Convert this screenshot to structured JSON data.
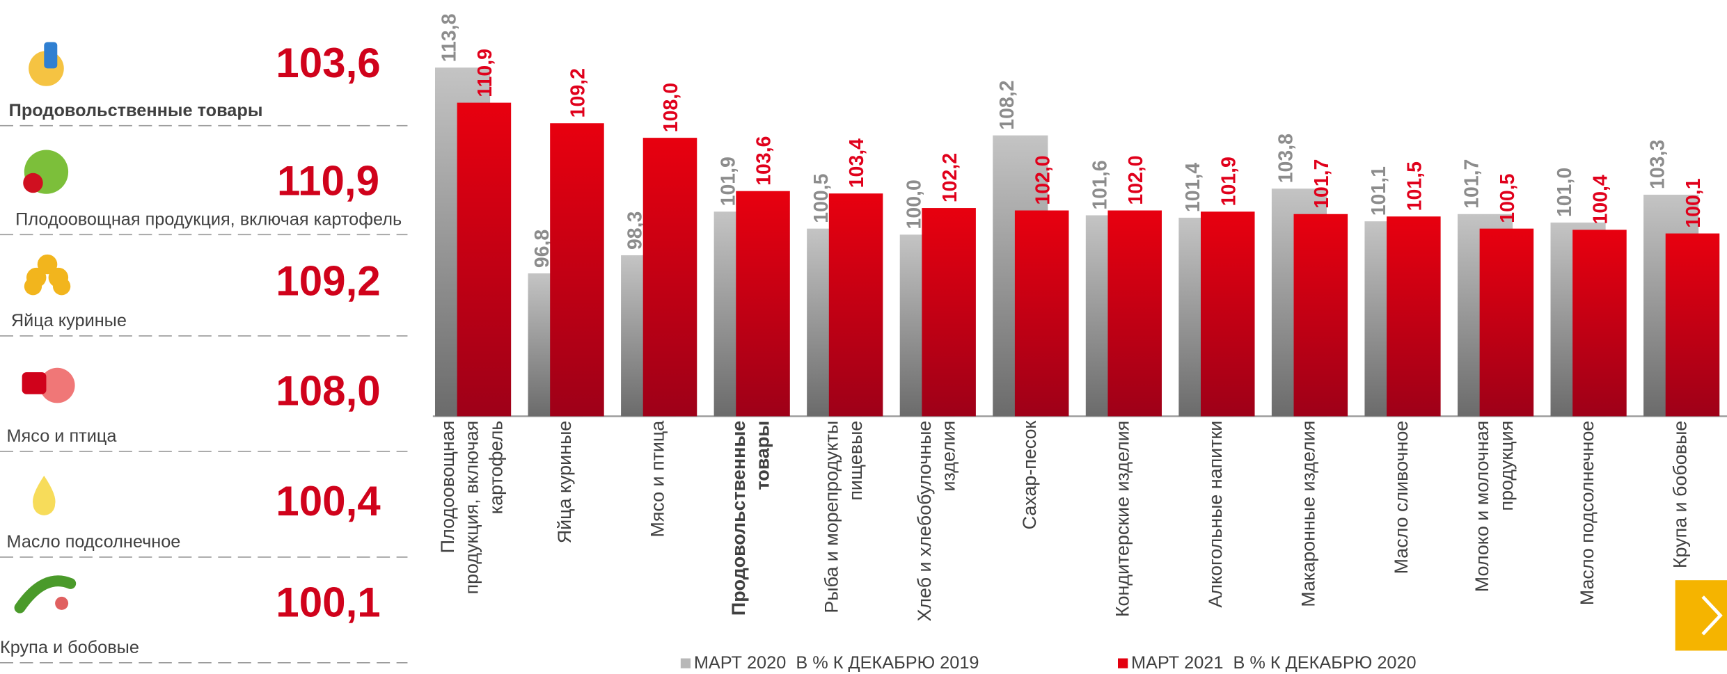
{
  "summary": [
    {
      "label": "Продовольственные товары",
      "value": "103,6"
    },
    {
      "label": "Плодоовощная продукция, включая картофель",
      "value": "110,9"
    },
    {
      "label": "Яйца куриные",
      "value": "109,2"
    },
    {
      "label": "Мясо и птица",
      "value": "108,0"
    },
    {
      "label": "Масло подсолнечное",
      "value": "100,4"
    },
    {
      "label": "Крупа и бобовые",
      "value": "100,1"
    }
  ],
  "chart_data": {
    "type": "bar",
    "categories": [
      "Плодоовощная продукция, включая картофель",
      "Яйца куриные",
      "Мясо и птица",
      "Продовольственные товары",
      "Рыба и морепродукты пищевые",
      "Хлеб и хлебобулочные изделия",
      "Сахар-песок",
      "Кондитерские изделия",
      "Алкогольные напитки",
      "Макаронные изделия",
      "Масло сливочное",
      "Молоко и молочная продукция",
      "Масло подсолнечное",
      "Крупа и бобовые"
    ],
    "highlight": 3,
    "series": [
      {
        "name": "МАРТ 2020  В % К ДЕКАБРЮ 2019",
        "color": "#b8b8b8",
        "values": [
          113.8,
          96.8,
          98.3,
          101.9,
          100.5,
          100.0,
          108.2,
          101.6,
          101.4,
          103.8,
          101.1,
          101.7,
          101.0,
          103.3
        ],
        "value_labels": [
          "113,8",
          "96,8",
          "98,3",
          "101,9",
          "100,5",
          "100,0",
          "108,2",
          "101,6",
          "101,4",
          "103,8",
          "101,1",
          "101,7",
          "101,0",
          "103,3"
        ]
      },
      {
        "name": "МАРТ 2021  В % К ДЕКАБРЮ 2020",
        "color": "#e3000f",
        "values": [
          110.9,
          109.2,
          108.0,
          103.6,
          103.4,
          102.2,
          102.0,
          102.0,
          101.9,
          101.7,
          101.5,
          100.5,
          100.4,
          100.1
        ],
        "value_labels": [
          "110,9",
          "109,2",
          "108,0",
          "103,6",
          "103,4",
          "102,2",
          "102,0",
          "102,0",
          "101,9",
          "101,7",
          "101,5",
          "100,5",
          "100,4",
          "100,1"
        ]
      }
    ],
    "ylim": [
      85,
      115
    ]
  }
}
